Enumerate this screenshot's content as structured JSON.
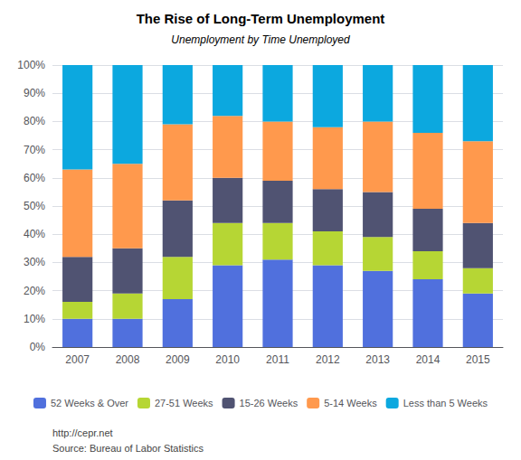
{
  "chart_data": {
    "type": "bar",
    "title": "The Rise of Long-Term Unemployment",
    "subtitle": "Unemployment by Time Unemployed",
    "categories": [
      "2007",
      "2008",
      "2009",
      "2010",
      "2011",
      "2012",
      "2013",
      "2014",
      "2015"
    ],
    "series": [
      {
        "name": "52 Weeks & Over",
        "values": [
          10,
          10,
          17,
          29,
          31,
          29,
          27,
          24,
          19
        ]
      },
      {
        "name": "27-51 Weeks",
        "values": [
          6,
          9,
          15,
          15,
          13,
          12,
          12,
          10,
          9
        ]
      },
      {
        "name": "15-26 Weeks",
        "values": [
          16,
          16,
          20,
          16,
          15,
          15,
          16,
          15,
          16
        ]
      },
      {
        "name": "5-14 Weeks",
        "values": [
          31,
          30,
          27,
          22,
          21,
          22,
          25,
          27,
          29
        ]
      },
      {
        "name": "Less than 5 Weeks",
        "values": [
          37,
          35,
          21,
          18,
          20,
          22,
          20,
          24,
          27
        ]
      }
    ],
    "stacked": true,
    "ylim": [
      0,
      100
    ],
    "yticks": [
      {
        "value": 0,
        "label": "0%"
      },
      {
        "value": 10,
        "label": "10%"
      },
      {
        "value": 20,
        "label": "20%"
      },
      {
        "value": 30,
        "label": "30%"
      },
      {
        "value": 40,
        "label": "40%"
      },
      {
        "value": 50,
        "label": "50%"
      },
      {
        "value": 60,
        "label": "60%"
      },
      {
        "value": 70,
        "label": "70%"
      },
      {
        "value": 80,
        "label": "80%"
      },
      {
        "value": 90,
        "label": "90%"
      },
      {
        "value": 100,
        "label": "100%"
      }
    ],
    "grid": true,
    "legend": "bottom",
    "annotations": [
      "http://cepr.net",
      "Source: Bureau of Labor Statistics"
    ]
  }
}
